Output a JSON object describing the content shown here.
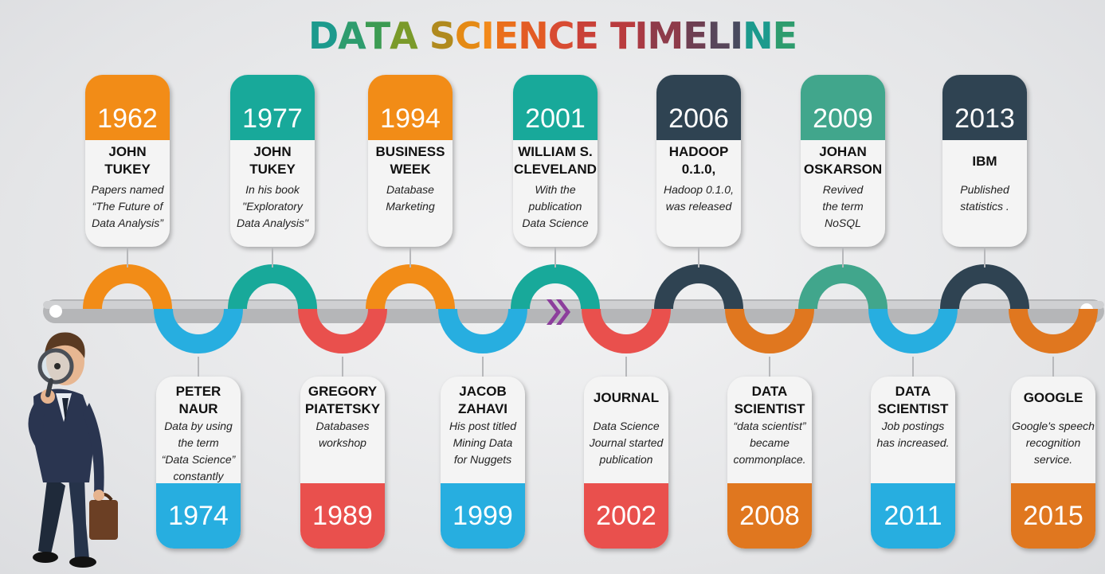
{
  "title": [
    "DATA ",
    "SCIENCE ",
    "TIMELINE"
  ],
  "title_letter_colors": [
    "#1c9a8d",
    "#2e9c6e",
    "#3c9b52",
    "#7a9a2a",
    "#b08a1e",
    "#e58a15",
    "#f2891a",
    "#ea6f1c",
    "#e35b24",
    "#d84c33",
    "#c94138",
    "#b93b3e",
    "#a93a44",
    "#8e3b4a",
    "#6e3f52",
    "#58465a",
    "#484a5e"
  ],
  "colors": {
    "orange": "#f28c17",
    "teal": "#18a99a",
    "navy": "#2f4352",
    "green": "#41a68c",
    "blue": "#27aee0",
    "red": "#e9504d",
    "burnt": "#e0771f",
    "arrow": "#8c3e9c"
  },
  "top_events": [
    {
      "year": "1962",
      "heading": [
        "JOHN",
        "TUKEY"
      ],
      "desc": [
        "Papers named",
        "“The Future of",
        "Data Analysis”"
      ],
      "color": "#f28c17"
    },
    {
      "year": "1977",
      "heading": [
        "JOHN",
        "TUKEY"
      ],
      "desc": [
        "In his book",
        "\"Exploratory",
        "Data Analysis\""
      ],
      "color": "#18a99a"
    },
    {
      "year": "1994",
      "heading": [
        "BUSINESS",
        "WEEK"
      ],
      "desc": [
        "Database",
        "Marketing"
      ],
      "color": "#f28c17"
    },
    {
      "year": "2001",
      "heading": [
        "WILLIAM S.",
        "CLEVELAND"
      ],
      "desc": [
        "With the",
        "publication",
        "Data Science"
      ],
      "color": "#18a99a"
    },
    {
      "year": "2006",
      "heading": [
        "HADOOP",
        "0.1.0,"
      ],
      "desc": [
        "Hadoop 0.1.0,",
        "was released"
      ],
      "color": "#2f4352"
    },
    {
      "year": "2009",
      "heading": [
        "JOHAN",
        "OSKARSON"
      ],
      "desc": [
        "Revived",
        "the term",
        "NoSQL"
      ],
      "color": "#41a68c"
    },
    {
      "year": "2013",
      "heading": [
        "IBM"
      ],
      "desc": [
        "Published",
        "statistics ."
      ],
      "color": "#2f4352"
    }
  ],
  "bottom_events": [
    {
      "year": "1974",
      "heading": [
        "PETER",
        "NAUR"
      ],
      "desc": [
        "Data by using",
        "the term",
        "“Data Science”",
        "constantly"
      ],
      "color": "#27aee0"
    },
    {
      "year": "1989",
      "heading": [
        "GREGORY",
        "PIATETSKY"
      ],
      "desc": [
        "Databases",
        "workshop"
      ],
      "color": "#e9504d"
    },
    {
      "year": "1999",
      "heading": [
        "JACOB",
        "ZAHAVI"
      ],
      "desc": [
        "His post titled",
        "Mining Data",
        "for Nuggets"
      ],
      "color": "#27aee0"
    },
    {
      "year": "2002",
      "heading": [
        "JOURNAL"
      ],
      "desc": [
        "Data Science",
        "Journal started",
        "publication"
      ],
      "color": "#e9504d"
    },
    {
      "year": "2008",
      "heading": [
        "DATA",
        "SCIENTIST"
      ],
      "desc": [
        "“data scientist”",
        "became",
        "commonplace."
      ],
      "color": "#e0771f"
    },
    {
      "year": "2011",
      "heading": [
        "DATA",
        "SCIENTIST"
      ],
      "desc": [
        "Job postings",
        "has increased."
      ],
      "color": "#27aee0"
    },
    {
      "year": "2015",
      "heading": [
        "GOOGLE"
      ],
      "desc": [
        "Google's speech",
        "recognition",
        "service."
      ],
      "color": "#e0771f"
    }
  ]
}
